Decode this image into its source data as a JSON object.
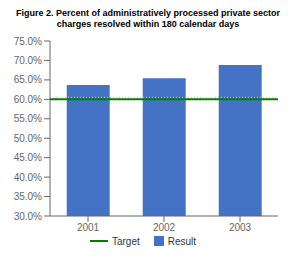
{
  "chart_data": {
    "type": "bar",
    "title": "Figure 2. Percent of administratively processed private sector",
    "subtitle": "charges resolved within 180 calendar days",
    "categories": [
      "2001",
      "2002",
      "2003"
    ],
    "series": [
      {
        "name": "Result",
        "color": "#4472c4",
        "values": [
          63.7,
          65.4,
          68.8
        ]
      }
    ],
    "lines": [
      {
        "value": 60.5,
        "color": "#ffaaaa",
        "line_style": "dotted"
      },
      {
        "name": "Target",
        "value": 60.0,
        "color": "#008000",
        "line_style": "solid"
      }
    ],
    "ylim": [
      30.0,
      75.0
    ],
    "yticks": [
      {
        "value": 30.0,
        "label": "30.0%"
      },
      {
        "value": 35.0,
        "label": "35.0%"
      },
      {
        "value": 40.0,
        "label": "40.0%"
      },
      {
        "value": 45.0,
        "label": "45.0%"
      },
      {
        "value": 50.0,
        "label": "50.0%"
      },
      {
        "value": 55.0,
        "label": "55.0%"
      },
      {
        "value": 60.0,
        "label": "60.0%"
      },
      {
        "value": 65.0,
        "label": "65.0%"
      },
      {
        "value": 70.0,
        "label": "70.0%"
      },
      {
        "value": 75.0,
        "label": "75.0%"
      }
    ],
    "grid": false
  }
}
